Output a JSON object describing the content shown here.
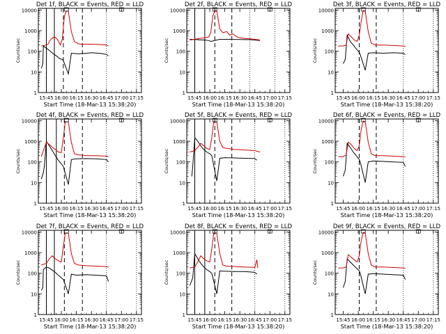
{
  "chart_data": [
    {
      "type": "line",
      "title": "Det 1f, BLACK = Events, RED = LLD",
      "xlabel": "Start Time (18-Mar-13 15:38:20)",
      "ylabel": "Counts/sec",
      "yscale": "log",
      "ylim": [
        1,
        12000
      ],
      "xlim_minutes_after_15_45": [
        -8,
        95
      ],
      "x_tick_labels": [
        "15:45",
        "16:00",
        "16:15",
        "16:30",
        "16:45",
        "17:00",
        "17:15"
      ],
      "y_tick_labels": [
        "1",
        "10",
        "100",
        "1000",
        "10000"
      ],
      "series": [
        {
          "name": "BLACK",
          "color": "#000000",
          "x": [
            -5,
            -3.5,
            -3,
            0,
            2,
            5,
            8,
            10,
            11,
            13,
            16,
            17,
            22,
            25,
            32,
            40,
            45,
            55,
            60,
            62
          ],
          "y": [
            15,
            25,
            180,
            140,
            120,
            90,
            70,
            60,
            55,
            45,
            40,
            35,
            8,
            80,
            75,
            80,
            85,
            78,
            70,
            60
          ]
        },
        {
          "name": "RED",
          "color": "#d00000",
          "x": [
            -5,
            0,
            2,
            3,
            5,
            8,
            11,
            14,
            16,
            17,
            18,
            20,
            22,
            25,
            28,
            32,
            35,
            45,
            55,
            60,
            62
          ],
          "y": [
            180,
            200,
            230,
            300,
            400,
            500,
            380,
            200,
            400,
            1500,
            5000,
            9000,
            8500,
            900,
            300,
            230,
            220,
            220,
            210,
            200,
            180
          ]
        }
      ],
      "solid_vlines_min": [
        0,
        8
      ],
      "dashed_vlines_min": [
        17,
        36
      ],
      "dotted_vlines_min": [
        60,
        90
      ]
    },
    {
      "type": "line",
      "title": "Det 2f, BLACK = Events, RED = LLD",
      "xlabel": "Start Time (18-Mar-13 15:38:20)",
      "ylabel": "Counts/sec",
      "yscale": "log",
      "ylim": [
        1,
        12000
      ],
      "xlim_minutes_after_15_45": [
        -8,
        95
      ],
      "x_tick_labels": [
        "15:45",
        "16:00",
        "16:15",
        "16:30",
        "16:45",
        "17:00",
        "17:15"
      ],
      "y_tick_labels": [
        "1",
        "10",
        "100",
        "1000",
        "10000"
      ],
      "series": [
        {
          "name": "BLACK",
          "color": "#000000",
          "x": [
            -5,
            0,
            5,
            10,
            14,
            16,
            22,
            25,
            30,
            40,
            45,
            55,
            60,
            65
          ],
          "y": [
            380,
            370,
            360,
            350,
            330,
            300,
            350,
            380,
            380,
            375,
            370,
            365,
            350,
            330
          ]
        },
        {
          "name": "RED",
          "color": "#d00000",
          "x": [
            -5,
            0,
            5,
            10,
            14,
            16,
            18,
            20,
            22,
            25,
            28,
            32,
            35,
            38,
            42,
            45,
            50,
            55,
            60,
            65
          ],
          "y": [
            350,
            380,
            420,
            450,
            500,
            800,
            5000,
            9500,
            9000,
            1200,
            800,
            900,
            600,
            700,
            500,
            450,
            420,
            400,
            380,
            350
          ]
        }
      ],
      "solid_vlines_min": [
        0,
        10
      ],
      "dashed_vlines_min": [
        20,
        37
      ],
      "dotted_vlines_min": [
        55,
        80
      ]
    },
    {
      "type": "line",
      "title": "Det 3f, BLACK = Events, RED = LLD",
      "xlabel": "Start Time (18-Mar-13 15:38:20)",
      "ylabel": "Counts/sec",
      "yscale": "log",
      "ylim": [
        1,
        12000
      ],
      "xlim_minutes_after_15_45": [
        -8,
        95
      ],
      "x_tick_labels": [
        "15:45",
        "16:00",
        "16:15",
        "16:30",
        "16:45",
        "17:00",
        "17:15"
      ],
      "y_tick_labels": [
        "1",
        "10",
        "100",
        "1000",
        "10000"
      ],
      "series": [
        {
          "name": "BLACK",
          "color": "#000000",
          "x": [
            0,
            2,
            4,
            7,
            10,
            13,
            16,
            17,
            22,
            25,
            30,
            40,
            50,
            60,
            62
          ],
          "y": [
            25,
            40,
            600,
            300,
            200,
            130,
            90,
            70,
            12,
            80,
            85,
            80,
            85,
            80,
            70
          ]
        },
        {
          "name": "RED",
          "color": "#d00000",
          "x": [
            -5,
            0,
            3,
            5,
            8,
            11,
            14,
            16,
            18,
            20,
            22,
            25,
            28,
            32,
            40,
            50,
            60,
            62
          ],
          "y": [
            180,
            180,
            200,
            700,
            500,
            350,
            300,
            600,
            3000,
            9500,
            9000,
            900,
            250,
            200,
            200,
            190,
            180,
            170
          ]
        }
      ],
      "solid_vlines_min": [],
      "dashed_vlines_min": [
        16,
        33
      ],
      "dotted_vlines_min": [
        60,
        90
      ]
    },
    {
      "type": "line",
      "title": "Det 4f, BLACK = Events, RED = LLD",
      "xlabel": "Start Time (18-Mar-13 15:38:20)",
      "ylabel": "Counts/sec",
      "yscale": "log",
      "ylim": [
        1,
        12000
      ],
      "xlim_minutes_after_15_45": [
        -8,
        95
      ],
      "x_tick_labels": [
        "15:45",
        "16:00",
        "16:15",
        "16:30",
        "16:45",
        "17:00",
        "17:15"
      ],
      "y_tick_labels": [
        "1",
        "10",
        "100",
        "1000",
        "10000"
      ],
      "series": [
        {
          "name": "BLACK",
          "color": "#000000",
          "x": [
            -5,
            -3,
            -2,
            0,
            3,
            6,
            9,
            12,
            15,
            17,
            22,
            25,
            30,
            40,
            50,
            60,
            62
          ],
          "y": [
            15,
            30,
            60,
            1000,
            600,
            350,
            200,
            120,
            80,
            60,
            8,
            130,
            140,
            145,
            140,
            130,
            100
          ]
        },
        {
          "name": "RED",
          "color": "#d00000",
          "x": [
            -5,
            0,
            3,
            6,
            9,
            12,
            15,
            17,
            19,
            22,
            25,
            28,
            32,
            40,
            50,
            60,
            62
          ],
          "y": [
            180,
            900,
            700,
            500,
            400,
            300,
            280,
            1500,
            9000,
            8500,
            900,
            250,
            220,
            200,
            200,
            190,
            180
          ]
        }
      ],
      "solid_vlines_min": [
        0,
        10
      ],
      "dashed_vlines_min": [
        18,
        36
      ],
      "dotted_vlines_min": [
        60,
        90
      ]
    },
    {
      "type": "line",
      "title": "Det 5f, BLACK = Events, RED = LLD",
      "xlabel": "Start Time (18-Mar-13 15:38:20)",
      "ylabel": "Counts/sec",
      "yscale": "log",
      "ylim": [
        1,
        12000
      ],
      "xlim_minutes_after_15_45": [
        -8,
        95
      ],
      "x_tick_labels": [
        "15:45",
        "16:00",
        "16:15",
        "16:30",
        "16:45",
        "17:00",
        "17:15"
      ],
      "y_tick_labels": [
        "1",
        "10",
        "100",
        "1000",
        "10000"
      ],
      "series": [
        {
          "name": "BLACK",
          "color": "#000000",
          "x": [
            -3,
            -2,
            0,
            3,
            6,
            9,
            12,
            15,
            17,
            22,
            25,
            30,
            40,
            50,
            60,
            62
          ],
          "y": [
            20,
            60,
            1500,
            1000,
            600,
            400,
            300,
            250,
            200,
            12,
            150,
            160,
            155,
            150,
            145,
            120
          ]
        },
        {
          "name": "RED",
          "color": "#d00000",
          "x": [
            -5,
            0,
            3,
            6,
            9,
            12,
            15,
            17,
            19,
            22,
            25,
            28,
            32,
            40,
            50,
            60,
            65
          ],
          "y": [
            300,
            350,
            500,
            800,
            600,
            450,
            400,
            1500,
            9000,
            8500,
            1000,
            500,
            450,
            400,
            380,
            350,
            300
          ]
        }
      ],
      "solid_vlines_min": [
        0,
        10
      ],
      "dashed_vlines_min": [
        20,
        37
      ],
      "dotted_vlines_min": [
        60,
        90
      ]
    },
    {
      "type": "line",
      "title": "Det 6f, BLACK = Events, RED = LLD",
      "xlabel": "Start Time (18-Mar-13 15:38:20)",
      "ylabel": "Counts/sec",
      "yscale": "log",
      "ylim": [
        1,
        12000
      ],
      "xlim_minutes_after_15_45": [
        -8,
        95
      ],
      "x_tick_labels": [
        "15:45",
        "16:00",
        "16:15",
        "16:30",
        "16:45",
        "17:00",
        "17:15"
      ],
      "y_tick_labels": [
        "1",
        "10",
        "100",
        "1000",
        "10000"
      ],
      "series": [
        {
          "name": "BLACK",
          "color": "#000000",
          "x": [
            0,
            2,
            4,
            7,
            10,
            13,
            16,
            17,
            22,
            25,
            30,
            40,
            50,
            60,
            62
          ],
          "y": [
            20,
            40,
            800,
            500,
            300,
            200,
            130,
            100,
            10,
            100,
            110,
            105,
            100,
            95,
            60
          ]
        },
        {
          "name": "RED",
          "color": "#d00000",
          "x": [
            -5,
            0,
            3,
            5,
            8,
            11,
            14,
            16,
            18,
            20,
            22,
            25,
            28,
            32,
            40,
            50,
            60,
            62
          ],
          "y": [
            180,
            180,
            220,
            900,
            700,
            450,
            350,
            600,
            4000,
            9500,
            9000,
            900,
            250,
            200,
            200,
            190,
            180,
            170
          ]
        }
      ],
      "solid_vlines_min": [],
      "dashed_vlines_min": [
        16,
        33
      ],
      "dotted_vlines_min": [
        60,
        90
      ]
    },
    {
      "type": "line",
      "title": "Det 7f, BLACK = Events, RED = LLD",
      "xlabel": "Start Time (18-Mar-13 15:38:20)",
      "ylabel": "Counts/sec",
      "yscale": "log",
      "ylim": [
        1,
        12000
      ],
      "xlim_minutes_after_15_45": [
        -8,
        95
      ],
      "x_tick_labels": [
        "15:45",
        "16:00",
        "16:15",
        "16:30",
        "16:45",
        "17:00",
        "17:15"
      ],
      "y_tick_labels": [
        "1",
        "10",
        "100",
        "1000",
        "10000"
      ],
      "series": [
        {
          "name": "BLACK",
          "color": "#000000",
          "x": [
            -5,
            -3.5,
            -3,
            0,
            3,
            6,
            9,
            12,
            15,
            17,
            22,
            25,
            30,
            40,
            50,
            60,
            62
          ],
          "y": [
            15,
            20,
            150,
            200,
            180,
            140,
            110,
            80,
            60,
            50,
            10,
            90,
            80,
            85,
            80,
            75,
            40
          ]
        },
        {
          "name": "RED",
          "color": "#d00000",
          "x": [
            -5,
            0,
            3,
            6,
            9,
            12,
            15,
            17,
            19,
            22,
            25,
            28,
            32,
            40,
            50,
            60,
            62
          ],
          "y": [
            250,
            300,
            500,
            700,
            500,
            400,
            350,
            2000,
            9000,
            8500,
            900,
            300,
            250,
            230,
            220,
            210,
            200
          ]
        }
      ],
      "solid_vlines_min": [
        0,
        8
      ],
      "dashed_vlines_min": [
        18,
        36
      ],
      "dotted_vlines_min": [
        60,
        90
      ]
    },
    {
      "type": "line",
      "title": "Det 8f, BLACK = Events, RED = LLD",
      "xlabel": "Start Time (18-Mar-13 15:38:20)",
      "ylabel": "Counts/sec",
      "yscale": "log",
      "ylim": [
        1,
        12000
      ],
      "xlim_minutes_after_15_45": [
        -8,
        95
      ],
      "x_tick_labels": [
        "15:45",
        "16:00",
        "16:15",
        "16:30",
        "16:45",
        "17:00",
        "17:15"
      ],
      "y_tick_labels": [
        "1",
        "10",
        "100",
        "1000",
        "10000"
      ],
      "series": [
        {
          "name": "BLACK",
          "color": "#000000",
          "x": [
            -5,
            -2,
            0,
            3,
            6,
            9,
            12,
            15,
            17,
            22,
            25,
            30,
            40,
            50,
            60,
            62
          ],
          "y": [
            25,
            60,
            900,
            500,
            300,
            200,
            150,
            120,
            100,
            10,
            130,
            125,
            120,
            120,
            110,
            90
          ]
        },
        {
          "name": "RED",
          "color": "#d00000",
          "x": [
            -5,
            0,
            3,
            6,
            9,
            12,
            15,
            17,
            19,
            22,
            25,
            28,
            32,
            40,
            50,
            60,
            62,
            63
          ],
          "y": [
            180,
            200,
            350,
            700,
            500,
            400,
            350,
            1500,
            9000,
            8500,
            900,
            250,
            220,
            210,
            200,
            190,
            450,
            180
          ]
        }
      ],
      "solid_vlines_min": [
        0,
        10
      ],
      "dashed_vlines_min": [
        20,
        37
      ],
      "dotted_vlines_min": [
        60,
        90
      ]
    },
    {
      "type": "line",
      "title": "Det 9f, BLACK = Events, RED = LLD",
      "xlabel": "Start Time (18-Mar-13 15:38:20)",
      "ylabel": "Counts/sec",
      "yscale": "log",
      "ylim": [
        1,
        12000
      ],
      "xlim_minutes_after_15_45": [
        -8,
        95
      ],
      "x_tick_labels": [
        "15:45",
        "16:00",
        "16:15",
        "16:30",
        "16:45",
        "17:00",
        "17:15"
      ],
      "y_tick_labels": [
        "1",
        "10",
        "100",
        "1000",
        "10000"
      ],
      "series": [
        {
          "name": "BLACK",
          "color": "#000000",
          "x": [
            0,
            2,
            4,
            7,
            10,
            13,
            16,
            17,
            22,
            25,
            30,
            40,
            50,
            60,
            62
          ],
          "y": [
            20,
            40,
            500,
            350,
            250,
            180,
            130,
            100,
            10,
            90,
            95,
            90,
            85,
            80,
            50
          ]
        },
        {
          "name": "RED",
          "color": "#d00000",
          "x": [
            -5,
            0,
            3,
            5,
            8,
            11,
            14,
            16,
            18,
            20,
            22,
            25,
            28,
            32,
            40,
            50,
            60,
            62
          ],
          "y": [
            180,
            180,
            200,
            800,
            600,
            450,
            350,
            700,
            4000,
            9500,
            9000,
            900,
            250,
            200,
            200,
            190,
            180,
            170
          ]
        }
      ],
      "solid_vlines_min": [],
      "dashed_vlines_min": [
        16,
        33
      ],
      "dotted_vlines_min": [
        60,
        90
      ]
    }
  ]
}
